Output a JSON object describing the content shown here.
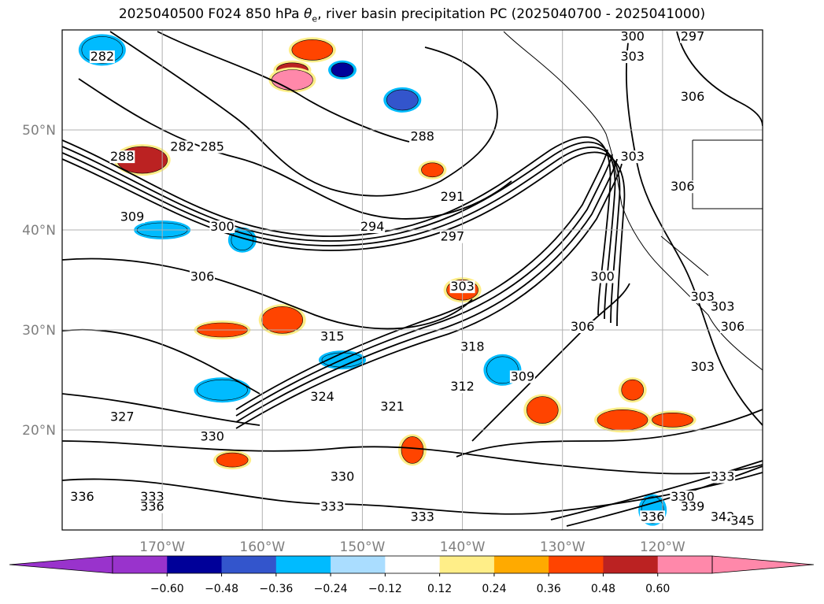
{
  "title_parts": {
    "prefix": "2025040500 F024 850 hPa ",
    "symbol": "θ",
    "symbol_sub": "e",
    "suffix": ", river basin precipitation PC (2025040700 - 2025041000)"
  },
  "chart_data": {
    "type": "heatmap",
    "map": {
      "projection": "latitude-longitude",
      "lon_range": [
        -180,
        -110
      ],
      "lat_range": [
        10,
        60
      ],
      "gridlines": true,
      "coastlines": true,
      "state_borders": true
    },
    "x_ticks": [
      {
        "lon": -170,
        "label": "170°W"
      },
      {
        "lon": -160,
        "label": "160°W"
      },
      {
        "lon": -150,
        "label": "150°W"
      },
      {
        "lon": -140,
        "label": "140°W"
      },
      {
        "lon": -130,
        "label": "130°W"
      },
      {
        "lon": -120,
        "label": "120°W"
      }
    ],
    "y_ticks": [
      {
        "lat": 50,
        "label": "50°N"
      },
      {
        "lat": 40,
        "label": "40°N"
      },
      {
        "lat": 30,
        "label": "30°N"
      },
      {
        "lat": 20,
        "label": "20°N"
      }
    ],
    "colorbar": {
      "boundaries": [
        -0.72,
        -0.6,
        -0.48,
        -0.36,
        -0.24,
        -0.12,
        0.12,
        0.24,
        0.36,
        0.48,
        0.6,
        0.72
      ],
      "tick_values": [
        -0.6,
        -0.48,
        -0.36,
        -0.24,
        -0.12,
        0.12,
        0.24,
        0.36,
        0.48,
        0.6
      ],
      "tick_labels": [
        "−0.60",
        "−0.48",
        "−0.36",
        "−0.24",
        "−0.12",
        "0.12",
        "0.24",
        "0.36",
        "0.48",
        "0.60"
      ],
      "colors": [
        "#9933cc",
        "#000099",
        "#3355cc",
        "#00bbff",
        "#aaddff",
        "#ffffff",
        "#ffee88",
        "#ffaa00",
        "#ff4400",
        "#bb2222",
        "#ff88aa"
      ],
      "extend_low_color": "#9933cc",
      "extend_high_color": "#ff88aa"
    },
    "contour_labels": [
      {
        "text": "282",
        "lon": -176,
        "lat": 57
      },
      {
        "text": "282",
        "lon": -168,
        "lat": 48
      },
      {
        "text": "285",
        "lon": -165,
        "lat": 48
      },
      {
        "text": "288",
        "lon": -174,
        "lat": 47
      },
      {
        "text": "288",
        "lon": -144,
        "lat": 49
      },
      {
        "text": "291",
        "lon": -141,
        "lat": 43
      },
      {
        "text": "294",
        "lon": -149,
        "lat": 40
      },
      {
        "text": "297",
        "lon": -141,
        "lat": 39
      },
      {
        "text": "300",
        "lon": -164,
        "lat": 40
      },
      {
        "text": "309",
        "lon": -173,
        "lat": 41
      },
      {
        "text": "306",
        "lon": -166,
        "lat": 35
      },
      {
        "text": "303",
        "lon": -140,
        "lat": 34
      },
      {
        "text": "300",
        "lon": -126,
        "lat": 35
      },
      {
        "text": "306",
        "lon": -128,
        "lat": 30
      },
      {
        "text": "309",
        "lon": -134,
        "lat": 25
      },
      {
        "text": "312",
        "lon": -140,
        "lat": 24
      },
      {
        "text": "315",
        "lon": -153,
        "lat": 29
      },
      {
        "text": "318",
        "lon": -139,
        "lat": 28
      },
      {
        "text": "321",
        "lon": -147,
        "lat": 22
      },
      {
        "text": "324",
        "lon": -154,
        "lat": 23
      },
      {
        "text": "327",
        "lon": -174,
        "lat": 21
      },
      {
        "text": "330",
        "lon": -165,
        "lat": 19
      },
      {
        "text": "330",
        "lon": -152,
        "lat": 15
      },
      {
        "text": "330",
        "lon": -118,
        "lat": 13
      },
      {
        "text": "333",
        "lon": -171,
        "lat": 13
      },
      {
        "text": "333",
        "lon": -153,
        "lat": 12
      },
      {
        "text": "333",
        "lon": -144,
        "lat": 11
      },
      {
        "text": "336",
        "lon": -171,
        "lat": 12
      },
      {
        "text": "336",
        "lon": -178,
        "lat": 13
      },
      {
        "text": "336",
        "lon": -121,
        "lat": 11
      },
      {
        "text": "339",
        "lon": -117,
        "lat": 12
      },
      {
        "text": "342",
        "lon": -114,
        "lat": 11
      },
      {
        "text": "345",
        "lon": -112,
        "lat": 10.6
      },
      {
        "text": "333",
        "lon": -114,
        "lat": 15
      },
      {
        "text": "297",
        "lon": -117,
        "lat": 59
      },
      {
        "text": "300",
        "lon": -123,
        "lat": 59
      },
      {
        "text": "303",
        "lon": -123,
        "lat": 57
      },
      {
        "text": "306",
        "lon": -117,
        "lat": 53
      },
      {
        "text": "303",
        "lon": -116,
        "lat": 33
      },
      {
        "text": "303",
        "lon": -114,
        "lat": 32
      },
      {
        "text": "306",
        "lon": -113,
        "lat": 30
      },
      {
        "text": "303",
        "lon": -116,
        "lat": 26
      },
      {
        "text": "306",
        "lon": -118,
        "lat": 44
      },
      {
        "text": "303",
        "lon": -123,
        "lat": 47
      }
    ],
    "anomaly_blobs": [
      {
        "lon": -152,
        "lat": 56,
        "value": -0.6
      },
      {
        "lon": -146,
        "lat": 53,
        "value": -0.48
      },
      {
        "lon": -176,
        "lat": 58,
        "value": -0.36
      },
      {
        "lon": -170,
        "lat": 40,
        "value": -0.36
      },
      {
        "lon": -162,
        "lat": 39,
        "value": -0.36
      },
      {
        "lon": -136,
        "lat": 26,
        "value": -0.36
      },
      {
        "lon": -152,
        "lat": 27,
        "value": -0.36
      },
      {
        "lon": -164,
        "lat": 24,
        "value": -0.36
      },
      {
        "lon": -121,
        "lat": 12,
        "value": -0.36
      },
      {
        "lon": -157,
        "lat": 56,
        "value": 0.48
      },
      {
        "lon": -157,
        "lat": 55,
        "value": 0.6
      },
      {
        "lon": -172,
        "lat": 47,
        "value": 0.48
      },
      {
        "lon": -143,
        "lat": 46,
        "value": 0.36
      },
      {
        "lon": -140,
        "lat": 34,
        "value": 0.36
      },
      {
        "lon": -158,
        "lat": 31,
        "value": 0.36
      },
      {
        "lon": -164,
        "lat": 30,
        "value": 0.36
      },
      {
        "lon": -123,
        "lat": 24,
        "value": 0.36
      },
      {
        "lon": -132,
        "lat": 22,
        "value": 0.36
      },
      {
        "lon": -119,
        "lat": 21,
        "value": 0.36
      },
      {
        "lon": -124,
        "lat": 21,
        "value": 0.36
      },
      {
        "lon": -145,
        "lat": 18,
        "value": 0.36
      },
      {
        "lon": -163,
        "lat": 17,
        "value": 0.36
      },
      {
        "lon": -155,
        "lat": 58,
        "value": 0.36
      }
    ]
  }
}
